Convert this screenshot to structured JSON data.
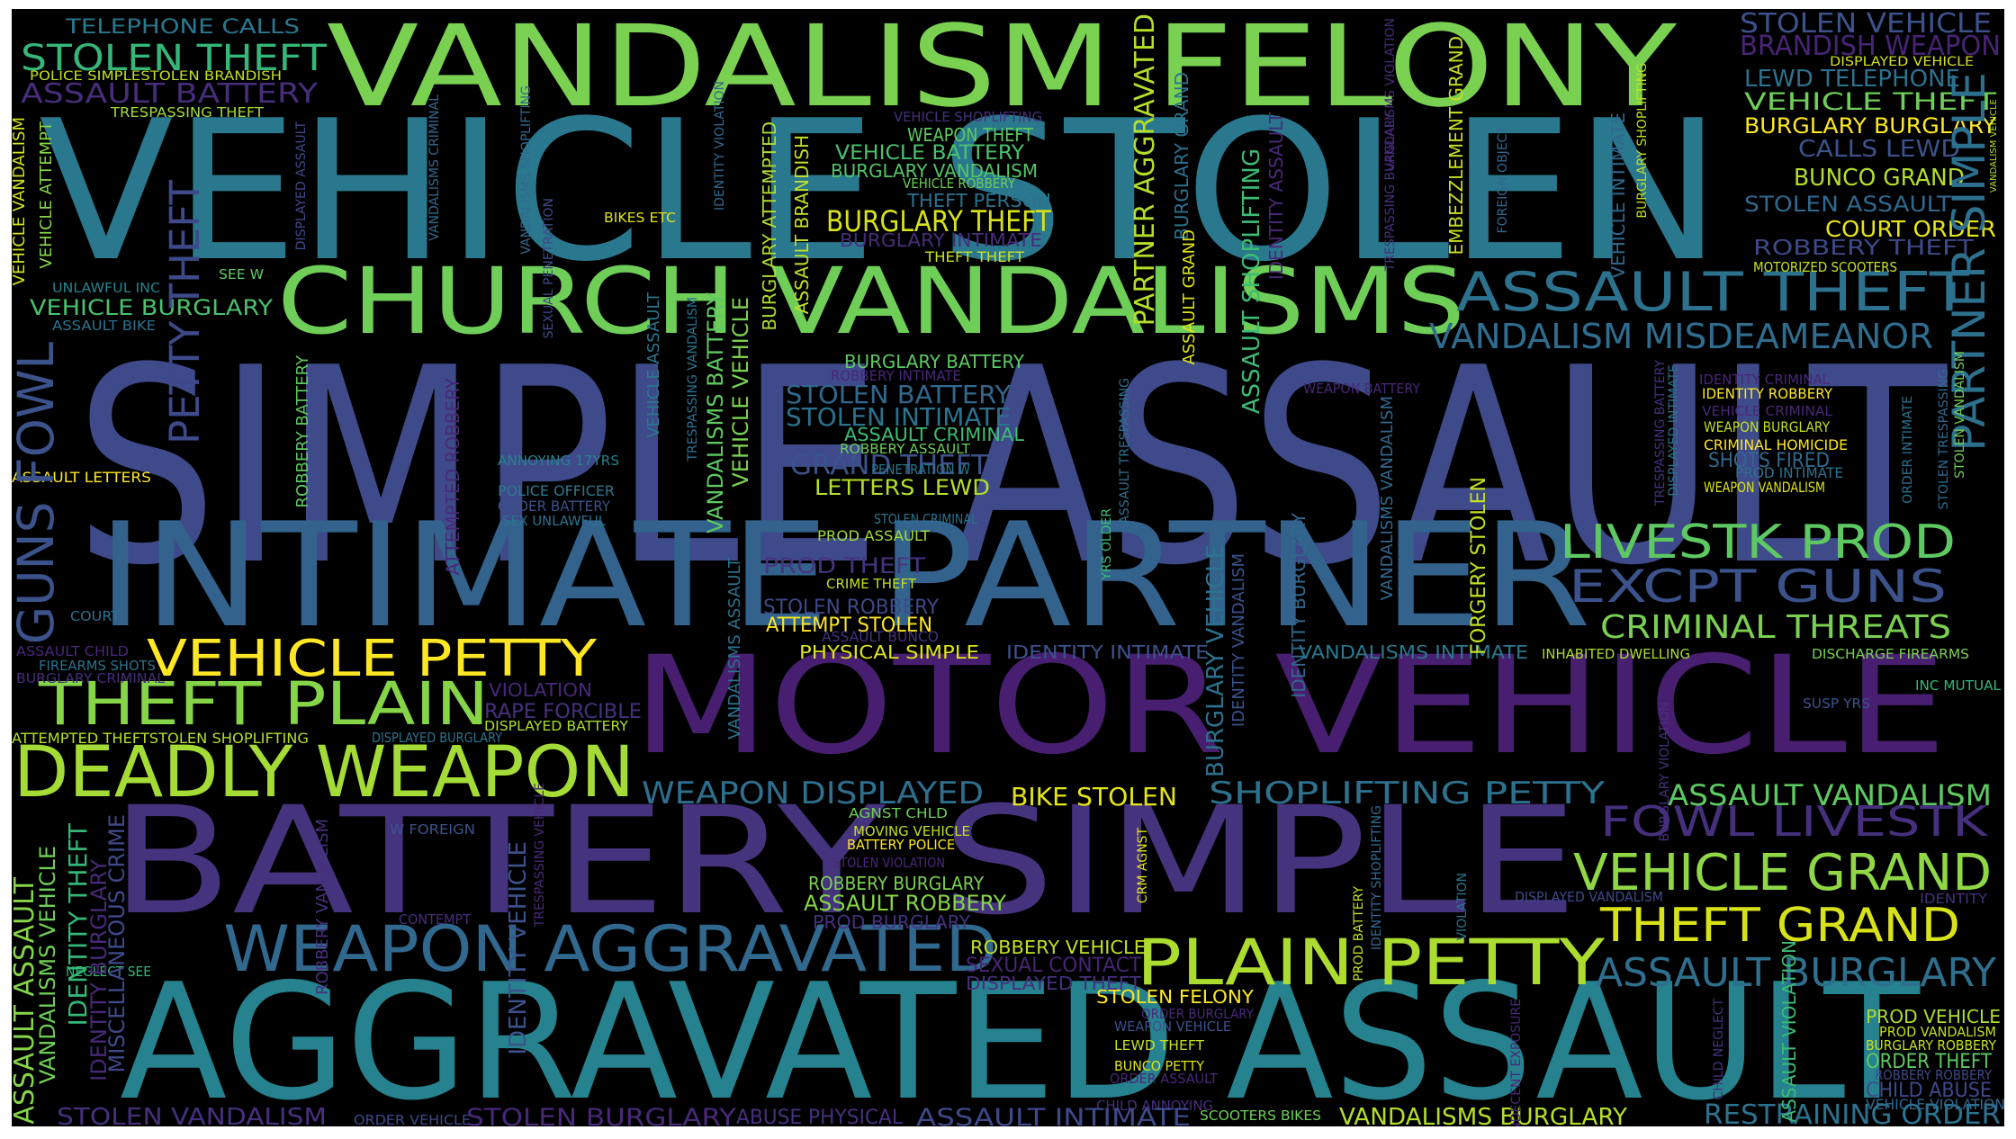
{
  "wordcloud": {
    "background": "#000000",
    "palette": [
      "#440154",
      "#482878",
      "#3e4989",
      "#31688e",
      "#26828e",
      "#1f9e89",
      "#35b779",
      "#6ece58",
      "#b5de2b",
      "#fde725"
    ],
    "words": [
      {
        "text": "SIMPLE ASSAULT",
        "color": "#3e4a89"
      },
      {
        "text": "VEHICLE STOLEN",
        "color": "#2a788e"
      },
      {
        "text": "AGGRAVATED ASSAULT",
        "color": "#26828e"
      },
      {
        "text": "INTIMATE PARTNER",
        "color": "#33638d"
      },
      {
        "text": "BATTERY SIMPLE",
        "color": "#46337e"
      },
      {
        "text": "MOTOR VEHICLE",
        "color": "#481f70"
      },
      {
        "text": "VANDALISM FELONY",
        "color": "#7ad151"
      },
      {
        "text": "CHURCH VANDALISMS",
        "color": "#6ece58"
      },
      {
        "text": "DEADLY WEAPON",
        "color": "#a5db36"
      },
      {
        "text": "WEAPON AGGRAVATED",
        "color": "#31688e"
      },
      {
        "text": "PLAIN PETTY",
        "color": "#addc30"
      },
      {
        "text": "THEFT PLAIN",
        "color": "#86d549"
      },
      {
        "text": "VEHICLE PETTY",
        "color": "#fde725"
      },
      {
        "text": "ASSAULT THEFT",
        "color": "#2c728e"
      },
      {
        "text": "LIVESTK PROD",
        "color": "#5ec962"
      },
      {
        "text": "EXCPT GUNS",
        "color": "#3b528b"
      },
      {
        "text": "VANDALISM MISDEAMEANOR",
        "color": "#2f6c8e"
      },
      {
        "text": "CRIMINAL THREATS",
        "color": "#7ad151"
      },
      {
        "text": "FOWL LIVESTK",
        "color": "#46307e"
      },
      {
        "text": "VEHICLE GRAND",
        "color": "#8fd744"
      },
      {
        "text": "THEFT GRAND",
        "color": "#d8e219"
      },
      {
        "text": "ASSAULT BURGLARY",
        "color": "#2e6f8e"
      },
      {
        "text": "STOLEN THEFT",
        "color": "#35b779"
      },
      {
        "text": "TELEPHONE CALLS",
        "color": "#2a788e"
      },
      {
        "text": "ASSAULT BATTERY",
        "color": "#472d7b"
      },
      {
        "text": "POLICE SIMPLESTOLEN BRANDISH",
        "color": "#c2df23"
      },
      {
        "text": "TRESPASSING THEFT",
        "color": "#a0da39"
      },
      {
        "text": "STOLEN VEHICLE",
        "color": "#3b528b"
      },
      {
        "text": "BRANDISH WEAPON",
        "color": "#482475"
      },
      {
        "text": "DISPLAYED VEHICLE",
        "color": "#d2e21b"
      },
      {
        "text": "LEWD TELEPHONE",
        "color": "#2c728e"
      },
      {
        "text": "VEHICLE THEFT",
        "color": "#6ece58"
      },
      {
        "text": "BURGLARY BURGLARY",
        "color": "#fde725"
      },
      {
        "text": "CALLS LEWD",
        "color": "#3b528b"
      },
      {
        "text": "BUNCO GRAND",
        "color": "#b5de2b"
      },
      {
        "text": "STOLEN ASSAULT",
        "color": "#31688e"
      },
      {
        "text": "COURT ORDER",
        "color": "#e5e419"
      },
      {
        "text": "ROBBERY THEFT",
        "color": "#3e4989"
      },
      {
        "text": "MOTORIZED SCOOTERS",
        "color": "#c8e020"
      },
      {
        "text": "PARTNER SIMPLE",
        "color": "#2d708e"
      },
      {
        "text": "WEAPON THEFT",
        "color": "#5ec962"
      },
      {
        "text": "VEHICLE BATTERY",
        "color": "#4ac16d"
      },
      {
        "text": "BURGLARY VANDALISM",
        "color": "#52c569"
      },
      {
        "text": "VEHICLE ROBBERY",
        "color": "#6ece58"
      },
      {
        "text": "THEFT PERSON",
        "color": "#2c728e"
      },
      {
        "text": "BURGLARY THEFT",
        "color": "#d8e219"
      },
      {
        "text": "BURGLARY INTIMATE",
        "color": "#472c7a"
      },
      {
        "text": "THEFT THEFT",
        "color": "#c8e020"
      },
      {
        "text": "VEHICLE SHOPLIFTING",
        "color": "#46307e"
      },
      {
        "text": "BIKES ETC",
        "color": "#dde318"
      },
      {
        "text": "VEHICLE BURGLARY",
        "color": "#4ac16d"
      },
      {
        "text": "ASSAULT BIKE",
        "color": "#2c728e"
      },
      {
        "text": "UNLAWFUL INC",
        "color": "#26828e"
      },
      {
        "text": "SEE W",
        "color": "#5ec962"
      },
      {
        "text": "BURGLARY BATTERY",
        "color": "#5ec962"
      },
      {
        "text": "ROBBERY INTIMATE",
        "color": "#482878"
      },
      {
        "text": "STOLEN BATTERY",
        "color": "#31688e"
      },
      {
        "text": "STOLEN INTIMATE",
        "color": "#2c728e"
      },
      {
        "text": "ASSAULT CRIMINAL",
        "color": "#3dbc74"
      },
      {
        "text": "ROBBERY ASSAULT",
        "color": "#6ece58"
      },
      {
        "text": "GRAND THEFT",
        "color": "#3b528b"
      },
      {
        "text": "LETTERS LEWD",
        "color": "#b5de2b"
      },
      {
        "text": "PENETRATION W",
        "color": "#2a788e"
      },
      {
        "text": "STOLEN CRIMINAL",
        "color": "#2c728e"
      },
      {
        "text": "PROD ASSAULT",
        "color": "#a0da39"
      },
      {
        "text": "PROD THEFT",
        "color": "#46337e"
      },
      {
        "text": "CRIME THEFT",
        "color": "#c2df23"
      },
      {
        "text": "STOLEN ROBBERY",
        "color": "#3e4989"
      },
      {
        "text": "ATTEMPT STOLEN",
        "color": "#fde725"
      },
      {
        "text": "ASSAULT BUNCO",
        "color": "#46307e"
      },
      {
        "text": "PHYSICAL SIMPLE",
        "color": "#dde318"
      },
      {
        "text": "IDENTITY INTIMATE",
        "color": "#3b528b"
      },
      {
        "text": "VANDALISMS INTIMATE",
        "color": "#2a788e"
      },
      {
        "text": "INHABITED DWELLING",
        "color": "#addc30"
      },
      {
        "text": "DISCHARGE FIREARMS",
        "color": "#7ad151"
      },
      {
        "text": "INC MUTUAL",
        "color": "#35b779"
      },
      {
        "text": "SUSP YRS",
        "color": "#3b528b"
      },
      {
        "text": "WEAPON DISPLAYED",
        "color": "#2e6f8e"
      },
      {
        "text": "BIKE STOLEN",
        "color": "#e5e419"
      },
      {
        "text": "SHOPLIFTING PETTY",
        "color": "#2c728e"
      },
      {
        "text": "ASSAULT VANDALISM",
        "color": "#5ec962"
      },
      {
        "text": "ANNOYING 17YRS",
        "color": "#26828e"
      },
      {
        "text": "POLICE OFFICER",
        "color": "#2a788e"
      },
      {
        "text": "ORDER BATTERY",
        "color": "#3b528b"
      },
      {
        "text": "SEX UNLAWFUL",
        "color": "#2c728e"
      },
      {
        "text": "ASSAULT LETTERS",
        "color": "#fde725"
      },
      {
        "text": "COURT",
        "color": "#2e6f8e"
      },
      {
        "text": "ASSAULT CHILD",
        "color": "#482878"
      },
      {
        "text": "FIREARMS SHOTS",
        "color": "#2c728e"
      },
      {
        "text": "BURGLARY CRIMINAL",
        "color": "#472d7b"
      },
      {
        "text": "ATTEMPTED THEFTSTOLEN SHOPLIFTING",
        "color": "#b5de2b"
      },
      {
        "text": "DISPLAYED BURGLARY",
        "color": "#2c728e"
      },
      {
        "text": "VIOLATION",
        "color": "#482878"
      },
      {
        "text": "RAPE FORCIBLE",
        "color": "#46307e"
      },
      {
        "text": "DISPLAYED BATTERY",
        "color": "#addc30"
      },
      {
        "text": "AGNST CHLD",
        "color": "#6ece58"
      },
      {
        "text": "MOVING VEHICLE",
        "color": "#c2df23"
      },
      {
        "text": "BATTERY POLICE",
        "color": "#fde725"
      },
      {
        "text": "STOLEN VIOLATION",
        "color": "#482878"
      },
      {
        "text": "ROBBERY BURGLARY",
        "color": "#7ad151"
      },
      {
        "text": "ASSAULT ROBBERY",
        "color": "#86d549"
      },
      {
        "text": "PROD BURGLARY",
        "color": "#46307e"
      },
      {
        "text": "ROBBERY VEHICLE",
        "color": "#c2df23"
      },
      {
        "text": "SEXUAL CONTACT",
        "color": "#482475"
      },
      {
        "text": "DISPLAYED THEFT",
        "color": "#46307e"
      },
      {
        "text": "STOLEN FELONY",
        "color": "#fde725"
      },
      {
        "text": "ORDER BURGLARY",
        "color": "#482878"
      },
      {
        "text": "WEAPON VEHICLE",
        "color": "#3b528b"
      },
      {
        "text": "LEWD THEFT",
        "color": "#c2df23"
      },
      {
        "text": "BUNCO PETTY",
        "color": "#dde318"
      },
      {
        "text": "ORDER ASSAULT",
        "color": "#482878"
      },
      {
        "text": "CHILD ANNOYING",
        "color": "#46307e"
      },
      {
        "text": "W FOREIGN",
        "color": "#3b528b"
      },
      {
        "text": "CONTEMPT",
        "color": "#472d7b"
      },
      {
        "text": "NEGLECT SEE",
        "color": "#35b779"
      },
      {
        "text": "STOLEN VANDALISM",
        "color": "#46307e"
      },
      {
        "text": "ORDER VEHICLE",
        "color": "#3e4989"
      },
      {
        "text": "STOLEN BURGLARY",
        "color": "#482878"
      },
      {
        "text": "ABUSE PHYSICAL",
        "color": "#46307e"
      },
      {
        "text": "ASSAULT INTIMATE",
        "color": "#3e4989"
      },
      {
        "text": "SCOOTERS BIKES",
        "color": "#6ece58"
      },
      {
        "text": "VANDALISMS BURGLARY",
        "color": "#b5de2b"
      },
      {
        "text": "RESTRAINING ORDER",
        "color": "#2c728e"
      },
      {
        "text": "IDENTITY CRIMINAL",
        "color": "#482878"
      },
      {
        "text": "IDENTITY ROBBERY",
        "color": "#fde725"
      },
      {
        "text": "VEHICLE CRIMINAL",
        "color": "#482878"
      },
      {
        "text": "WEAPON BURGLARY",
        "color": "#c2df23"
      },
      {
        "text": "CRIMINAL HOMICIDE",
        "color": "#fde725"
      },
      {
        "text": "SHOTS FIRED",
        "color": "#31688e"
      },
      {
        "text": "PROD INTIMATE",
        "color": "#2c728e"
      },
      {
        "text": "WEAPON VANDALISM",
        "color": "#dde318"
      },
      {
        "text": "WEAPON BATTERY",
        "color": "#482878"
      },
      {
        "text": "DISPLAYED VANDALISM",
        "color": "#3e4989"
      },
      {
        "text": "IDENTITY",
        "color": "#46307e"
      },
      {
        "text": "PROD VEHICLE",
        "color": "#addc30"
      },
      {
        "text": "PROD VANDALISM",
        "color": "#c2df23"
      },
      {
        "text": "BURGLARY ROBBERY",
        "color": "#c8e020"
      },
      {
        "text": "ORDER THEFT",
        "color": "#5ec962"
      },
      {
        "text": "ROBBERY ROBBERY",
        "color": "#3e4989"
      },
      {
        "text": "CHILD ABUSE",
        "color": "#3e4989"
      },
      {
        "text": "VEHICLE VIOLATION",
        "color": "#31688e"
      },
      {
        "text": "GUNS FOWL",
        "color": "#3b528b"
      },
      {
        "text": "PETTY THEFT",
        "color": "#3e4989"
      },
      {
        "text": "VEHICLE VANDALISM",
        "color": "#d2e21b"
      },
      {
        "text": "VEHICLE ATTEMPT",
        "color": "#86d549"
      },
      {
        "text": "DISPLAYED ASSAULT",
        "color": "#3e4989"
      },
      {
        "text": "VANDALISMS CRIMINAL",
        "color": "#31688e"
      },
      {
        "text": "VANDALISMS SHOPLIFTING",
        "color": "#31688e"
      },
      {
        "text": "SEXUAL PENETRATION",
        "color": "#3e4989"
      },
      {
        "text": "IDENTITY VIOLATION",
        "color": "#31688e"
      },
      {
        "text": "ASSAULT BRANDISH",
        "color": "#c2df23"
      },
      {
        "text": "BURGLARY ATTEMPTED",
        "color": "#addc30"
      },
      {
        "text": "PARTNER AGGRAVATED",
        "color": "#b5de2b"
      },
      {
        "text": "BURGLARY GRAND",
        "color": "#2c728e"
      },
      {
        "text": "ASSAULT SHOPLIFTING",
        "color": "#3dbc74"
      },
      {
        "text": "IDENTITY ASSAULT",
        "color": "#482878"
      },
      {
        "text": "ASSAULT GRAND",
        "color": "#dde318"
      },
      {
        "text": "EMBEZZLEMENT GRAND",
        "color": "#c8e020"
      },
      {
        "text": "TRESPASSING BURGLARY",
        "color": "#46307e"
      },
      {
        "text": "FOREIGN OBJECT",
        "color": "#31688e"
      },
      {
        "text": "VEHICLE INTIMATE",
        "color": "#31688e"
      },
      {
        "text": "BURGLARY SHOPLIFTING",
        "color": "#c2df23"
      },
      {
        "text": "VANDALISMS VIOLATION",
        "color": "#482878"
      },
      {
        "text": "ROBBERY BATTERY",
        "color": "#5ec962"
      },
      {
        "text": "ATTEMPTED ROBBERY",
        "color": "#482878"
      },
      {
        "text": "VEHICLE ASSAULT",
        "color": "#2a788e"
      },
      {
        "text": "TRESPASSING VANDALISM",
        "color": "#2c728e"
      },
      {
        "text": "VANDALISMS BATTERY",
        "color": "#5ec962"
      },
      {
        "text": "VEHICLE VEHICLE",
        "color": "#7ad151"
      },
      {
        "text": "ASSAULT TRESPASSING",
        "color": "#2e6f8e"
      },
      {
        "text": "VANDALISMS VANDALISM",
        "color": "#31688e"
      },
      {
        "text": "YRS OLDER",
        "color": "#3dbc74"
      },
      {
        "text": "IDENTITY BURGLARY",
        "color": "#31688e"
      },
      {
        "text": "BURGLARY VEHICLE",
        "color": "#2c728e"
      },
      {
        "text": "IDENTITY VANDALISM",
        "color": "#3b528b"
      },
      {
        "text": "FORGERY STOLEN",
        "color": "#c2df23"
      },
      {
        "text": "VANDALISMS ASSAULT",
        "color": "#2c728e"
      },
      {
        "text": "TRESPASSING BATTERY",
        "color": "#46307e"
      },
      {
        "text": "DISPLAYED INTIMATE",
        "color": "#2c728e"
      },
      {
        "text": "ORDER INTIMATE",
        "color": "#2c728e"
      },
      {
        "text": "STOLEN TRESPASSING",
        "color": "#31688e"
      },
      {
        "text": "STOLEN VANDALISM",
        "color": "#6ece58"
      },
      {
        "text": "VANDALISM VEHICLE",
        "color": "#b5de2b"
      },
      {
        "text": "ASSAULT ASSAULT",
        "color": "#86d549"
      },
      {
        "text": "VANDALISMS VEHICLE",
        "color": "#6ece58"
      },
      {
        "text": "IDENTITY THEFT",
        "color": "#35b779"
      },
      {
        "text": "IDENTITY BURGLARY",
        "color": "#482878"
      },
      {
        "text": "MISCELLANEOUS CRIME",
        "color": "#3e4989"
      },
      {
        "text": "ROBBERY VANDALISM",
        "color": "#46307e"
      },
      {
        "text": "IDENTITY VEHICLE",
        "color": "#3b528b"
      },
      {
        "text": "TRESPASSING VEHICLE",
        "color": "#482878"
      },
      {
        "text": "CRM AGNST",
        "color": "#dde318"
      },
      {
        "text": "IDENTITY SHOPLIFTING",
        "color": "#31688e"
      },
      {
        "text": "PROD BATTERY",
        "color": "#c2df23"
      },
      {
        "text": "INDECENT EXPOSURE",
        "color": "#482878"
      },
      {
        "text": "CHILD NEGLECT",
        "color": "#46307e"
      },
      {
        "text": "ASSAULT VIOLATION",
        "color": "#3dbc74"
      },
      {
        "text": "BURGLARY VIOLATION",
        "color": "#46307e"
      },
      {
        "text": "VIOLATION",
        "color": "#2c728e"
      }
    ]
  }
}
